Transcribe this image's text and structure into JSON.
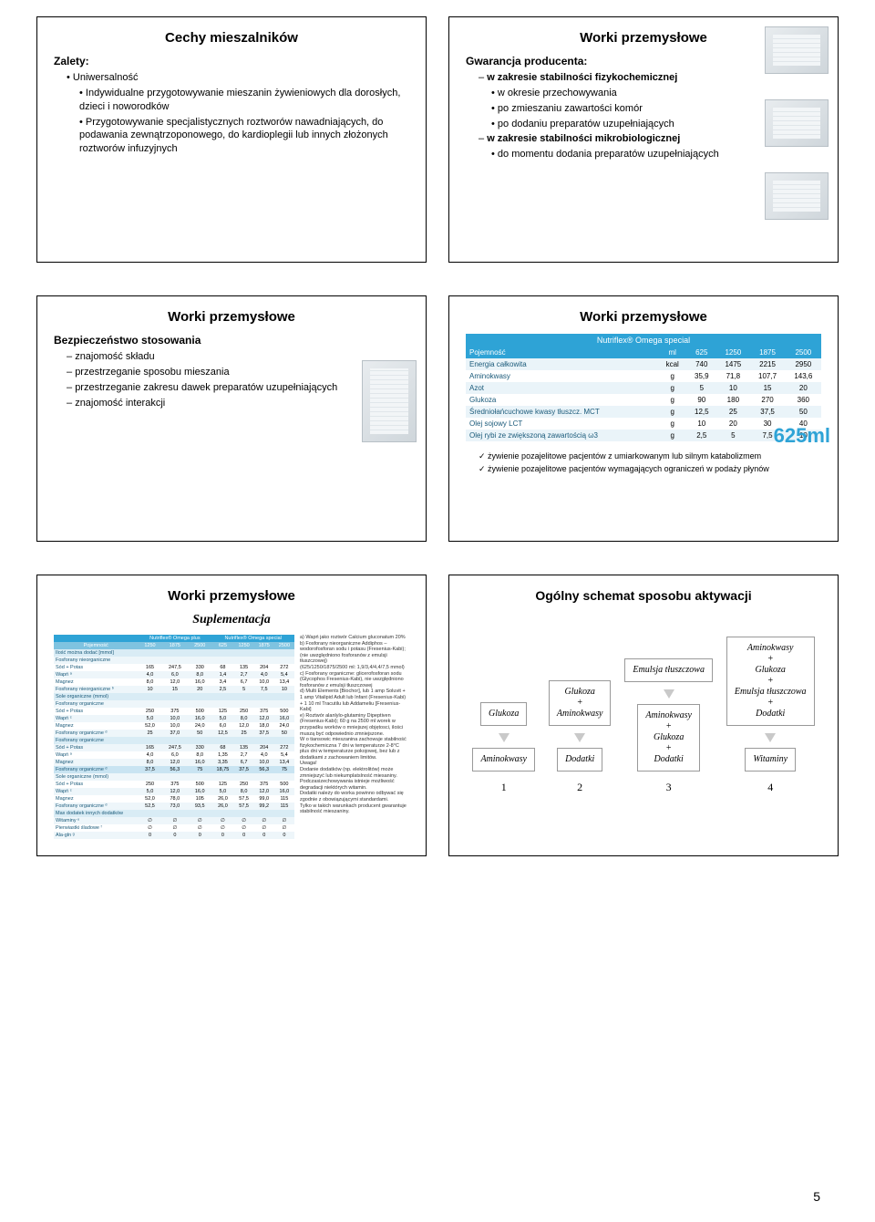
{
  "row1": {
    "left": {
      "title": "Cechy mieszalników",
      "heading": "Zalety:",
      "items": [
        {
          "t": "Uniwersalność",
          "lvl": 1,
          "b": "bullet"
        },
        {
          "t": "Indywidualne przygotowywanie mieszanin żywieniowych dla dorosłych, dzieci i noworodków",
          "lvl": 2,
          "b": "bullet"
        },
        {
          "t": "Przygotowywanie specjalistycznych roztworów nawadniających, do podawania zewnątrzoponowego, do kardioplegii lub innych złożonych roztworów infuzyjnych",
          "lvl": 2,
          "b": "bullet"
        }
      ]
    },
    "right": {
      "title": "Worki przemysłowe",
      "heading": "Gwarancja producenta:",
      "items": [
        {
          "t": "w zakresie stabilności fizykochemicznej",
          "lvl": 1,
          "b": "dash",
          "bold": true
        },
        {
          "t": "w okresie przechowywania",
          "lvl": 2,
          "b": "bullet"
        },
        {
          "t": "po zmieszaniu zawartości komór",
          "lvl": 2,
          "b": "bullet"
        },
        {
          "t": "po dodaniu preparatów uzupełniających",
          "lvl": 2,
          "b": "bullet"
        },
        {
          "t": "w zakresie stabilności mikrobiologicznej",
          "lvl": 1,
          "b": "dash",
          "bold": true
        },
        {
          "t": "do momentu dodania preparatów uzupełniających",
          "lvl": 2,
          "b": "bullet"
        }
      ]
    }
  },
  "row2": {
    "left": {
      "title": "Worki przemysłowe",
      "heading": "Bezpieczeństwo stosowania",
      "items": [
        {
          "t": "znajomość składu",
          "lvl": 1,
          "b": "dash"
        },
        {
          "t": "przestrzeganie sposobu mieszania",
          "lvl": 1,
          "b": "dash"
        },
        {
          "t": "przestrzeganie zakresu dawek preparatów uzupełniających",
          "lvl": 1,
          "b": "dash"
        },
        {
          "t": "znajomość interakcji",
          "lvl": 1,
          "b": "dash"
        }
      ]
    },
    "right": {
      "title": "Worki przemysłowe",
      "product": "Nutriflex® Omega special",
      "table": {
        "headers": [
          "Pojemność",
          "ml",
          "625",
          "1250",
          "1875",
          "2500"
        ],
        "rows": [
          [
            "Energia całkowita",
            "kcal",
            "740",
            "1475",
            "2215",
            "2950"
          ],
          [
            "Aminokwasy",
            "g",
            "35,9",
            "71,8",
            "107,7",
            "143,6"
          ],
          [
            "Azot",
            "g",
            "5",
            "10",
            "15",
            "20"
          ],
          [
            "Glukoza",
            "g",
            "90",
            "180",
            "270",
            "360"
          ],
          [
            "Średniołańcuchowe kwasy tłuszcz. MCT",
            "g",
            "12,5",
            "25",
            "37,5",
            "50"
          ],
          [
            "Olej sojowy LCT",
            "g",
            "10",
            "20",
            "30",
            "40"
          ],
          [
            "Olej rybi ze zwiększoną zawartością ω3",
            "g",
            "2,5",
            "5",
            "7,5",
            "10"
          ]
        ]
      },
      "badge": "625ml",
      "footnotes": [
        "żywienie pozajelitowe pacjentów z umiarkowanym lub silnym katabolizmem",
        "żywienie pozajelitowe pacjentów wymagających ograniczeń w podaży płynów"
      ]
    }
  },
  "row3": {
    "left": {
      "title": "Worki przemysłowe",
      "subtitle": "Suplementacja",
      "th_plus": "Nutriflex® Omega plus",
      "th_special": "Nutriflex® Omega special",
      "cols": [
        "Pojemność",
        "1250",
        "1875",
        "2500",
        "625",
        "1250",
        "1875",
        "2500"
      ],
      "band_max": "Ilość można dodać [mmol]",
      "band_inorg": "Fosforany nieorganiczne",
      "rows_inorg": [
        [
          "Sód + Potas",
          "165",
          "247,5",
          "330",
          "68",
          "135",
          "204",
          "272"
        ],
        [
          "Wapń ᵃ",
          "4,0",
          "6,0",
          "8,0",
          "1,4",
          "2,7",
          "4,0",
          "5,4"
        ],
        [
          "Magnez",
          "8,0",
          "12,0",
          "16,0",
          "3,4",
          "6,7",
          "10,0",
          "13,4"
        ],
        [
          "Fosforany nieorganiczne ᵇ",
          "10",
          "15",
          "20",
          "2,5",
          "5",
          "7,5",
          "10"
        ]
      ],
      "band_org_hdr": "Sole organiczne (mmol)",
      "band_org": "Fosforany organiczne",
      "rows_org1": [
        [
          "Sód + Potas",
          "250",
          "375",
          "500",
          "125",
          "250",
          "375",
          "500"
        ],
        [
          "Wapń ᶜ",
          "5,0",
          "10,0",
          "16,0",
          "5,0",
          "8,0",
          "12,0",
          "16,0"
        ],
        [
          "Magnez",
          "52,0",
          "10,0",
          "24,0",
          "6,0",
          "12,0",
          "18,0",
          "24,0"
        ],
        [
          "Fosforany organiczne ᵈ",
          "25",
          "37,0",
          "50",
          "12,5",
          "25",
          "37,5",
          "50"
        ]
      ],
      "rows_org2": [
        [
          "Sód + Potas",
          "165",
          "247,5",
          "330",
          "68",
          "135",
          "204",
          "272"
        ],
        [
          "Wapń ᵃ",
          "4,0",
          "6,0",
          "8,0",
          "1,35",
          "2,7",
          "4,0",
          "5,4"
        ],
        [
          "Magnez",
          "8,0",
          "12,0",
          "16,0",
          "3,35",
          "6,7",
          "10,0",
          "13,4"
        ],
        [
          "Fosforany organiczne ᵈ",
          "37,5",
          "56,3",
          "75",
          "18,75",
          "37,5",
          "56,3",
          "75"
        ]
      ],
      "rows_org3": [
        [
          "Sód + Potas",
          "250",
          "375",
          "500",
          "125",
          "250",
          "375",
          "500"
        ],
        [
          "Wapń ᶜ",
          "5,0",
          "12,0",
          "16,0",
          "5,0",
          "8,0",
          "12,0",
          "16,0"
        ],
        [
          "Magnez",
          "52,0",
          "78,0",
          "105",
          "26,0",
          "57,5",
          "99,0",
          "115"
        ],
        [
          "Fosforany organiczne ᵈ",
          "52,5",
          "73,0",
          "93,5",
          "26,0",
          "57,5",
          "99,2",
          "115"
        ]
      ],
      "band_add": "Max dodatek innych dodatków",
      "rows_add": [
        [
          "Witaminy ᵉ",
          "∅",
          "∅",
          "∅",
          "∅",
          "∅",
          "∅",
          "∅"
        ],
        [
          "Pierwiastki śladowe ᶠ",
          "∅",
          "∅",
          "∅",
          "∅",
          "∅",
          "∅",
          "∅"
        ],
        [
          "Ala-gln ᵍ",
          "0",
          "0",
          "0",
          "0",
          "0",
          "0",
          "0"
        ]
      ],
      "notes": "a) Wapń jako roztwór Calcium gluconatum 20%\nb) Fosforany nieorganiczne Addiphos – wodorofosforan sodu i potasu (Fresenius-Kabi);\n(nie uwzględniono fosforanów z emulsji tłuszczowej)\n(625/1250/1875/2500 ml: 1,9/3,4/4,4/7,5 mmol)\nc) Fosforany organiczne: glicerofosforan sodu (Glycophos Fresenius-Kabi), nie uwzględniono fosforanów z emulsji tłuszczowej\nd) Multi Elements [Biochor], lub 1 amp Soluvit + 1 amp Vitalipid Adult lub Infant (Fresenius-Kabi) + 1 10 ml Tracutilu lub Addameliu [Fresenius-Kabi]\ne) Roztwór alanlylo-glutaminy Dipeptiven (Fresenius-Kabi); 60 g na 2500 ml worek w przypadku worków o mniejszej objętosci, ilości muszą być odpowiednio zmniejszone.\nW o tiansowic mieszanina zachowuje stabilność fizykochemiczna 7 dni w temperaturze 2-8°C plus dni w temperaturze pokojowej, bez lub z dodatkami z zachowaniem limitów.\nUwaga!\nDodanie dodatków (np. elektrolitów) może zmniejszyć lub niekumplatslność miesaniny. Podczasizechowywania istnieje możliwość degradacji niektórych witamin.\nDodatki należy do worka powinno odbywać się zgodnie z obowiązującymi standardami.\nTylko w takich warunkach producent gwarantuje stabilność mieszaniny."
    },
    "right": {
      "title": "Ogólny schemat sposobu aktywacji",
      "cols": [
        {
          "n": "1",
          "boxes": [
            "Glukoza",
            "Aminokwasy"
          ],
          "arrows": [
            1
          ]
        },
        {
          "n": "2",
          "boxes": [
            "Glukoza\n+\nAminokwasy",
            "Dodatki"
          ],
          "arrows": [
            1
          ]
        },
        {
          "n": "3",
          "boxes": [
            "Emulsja tłuszczowa",
            "Aminokwasy\n+\nGlukoza\n+\nDodatki"
          ],
          "arrows": [
            1
          ]
        },
        {
          "n": "4",
          "boxes": [
            "Aminokwasy\n+\nGlukoza\n+\nEmulsja tłuszczowa\n+\nDodatki",
            "Witaminy"
          ],
          "arrows": [
            1
          ]
        }
      ]
    }
  },
  "page_number": "5"
}
